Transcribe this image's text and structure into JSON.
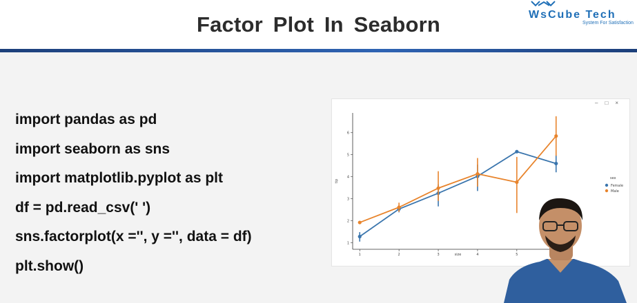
{
  "header": {
    "title": "Factor Plot  In  Seaborn",
    "logo_text": "WsCube Tech",
    "logo_tagline": "System For Satisfaction"
  },
  "code_lines": [
    "import pandas as pd",
    "import seaborn as sns",
    "import matplotlib.pyplot as plt",
    "df = pd.read_csv(' ')",
    "sns.factorplot(x ='', y ='', data = df)",
    "plt.show()"
  ],
  "plot_window": {
    "controls": [
      "–",
      "□",
      "×"
    ]
  },
  "chart_data": {
    "type": "line",
    "xlabel": "size",
    "ylabel": "tip",
    "x": [
      1,
      2,
      3,
      4,
      5,
      6
    ],
    "yticks": [
      1,
      2,
      3,
      4,
      5,
      6
    ],
    "ylim": [
      0.7,
      6.9
    ],
    "legend_title": "sex",
    "legend_position": "right",
    "grid": false,
    "series": [
      {
        "name": "Female",
        "color": "#3a75ad",
        "values": [
          1.28,
          2.53,
          3.25,
          4.02,
          5.14,
          4.6
        ],
        "err_low": [
          1.05,
          2.38,
          2.65,
          3.35,
          5.1,
          4.2
        ],
        "err_high": [
          1.48,
          2.7,
          3.65,
          4.55,
          5.18,
          5.0
        ]
      },
      {
        "name": "Male",
        "color": "#e8842c",
        "values": [
          1.92,
          2.61,
          3.48,
          4.13,
          3.75,
          5.85
        ],
        "err_low": [
          1.9,
          2.4,
          2.9,
          3.55,
          2.35,
          4.95
        ],
        "err_high": [
          1.94,
          2.82,
          4.25,
          4.85,
          4.9,
          6.75
        ]
      }
    ]
  }
}
